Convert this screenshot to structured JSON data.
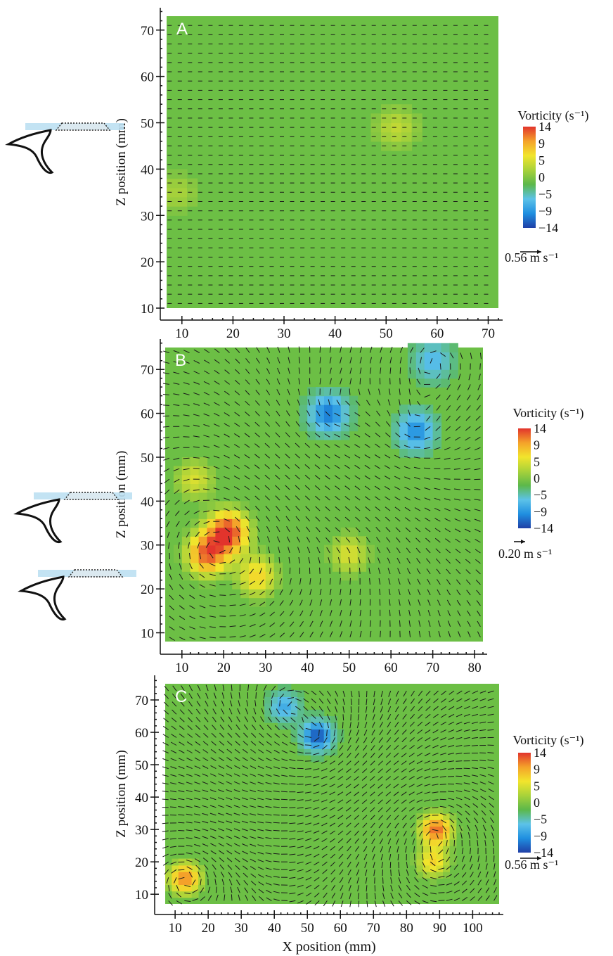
{
  "figure": {
    "x_axis_label": "X position (mm)",
    "colors": {
      "vorticity_scale": [
        "#1f3fa6",
        "#1f8fe0",
        "#5cc2e8",
        "#5cb84a",
        "#a8d23a",
        "#f2e52c",
        "#f4a22a",
        "#e2342c"
      ],
      "background_field": "#6cbf45",
      "arrow": "#1a1a1a"
    }
  },
  "chart_data": [
    {
      "type": "heatmap",
      "panel": "A",
      "ylabel": "Z position (mm)",
      "xlabel": "",
      "x_ticks": [
        10,
        20,
        30,
        40,
        50,
        60,
        70
      ],
      "y_ticks": [
        10,
        20,
        30,
        40,
        50,
        60,
        70
      ],
      "xlim": [
        7,
        72
      ],
      "ylim": [
        10,
        73
      ],
      "colorbar": {
        "title": "Vorticity (s⁻¹)",
        "ticks": [
          "14",
          "9",
          "5",
          "0",
          "−5",
          "−9",
          "−14"
        ],
        "range": [
          -14,
          14
        ]
      },
      "velocity_scale": "0.56 m s⁻¹",
      "flow_field": "uniform",
      "vortices": [
        {
          "x": 52,
          "z": 49,
          "vorticity": 4
        },
        {
          "x": 9,
          "z": 35,
          "vorticity": 3
        }
      ]
    },
    {
      "type": "heatmap",
      "panel": "B",
      "ylabel": "Z position (mm)",
      "xlabel": "",
      "x_ticks": [
        10,
        20,
        30,
        40,
        50,
        60,
        70,
        80
      ],
      "y_ticks": [
        10,
        20,
        30,
        40,
        50,
        60,
        70
      ],
      "xlim": [
        6,
        82
      ],
      "ylim": [
        8,
        75
      ],
      "colorbar": {
        "title": "Vorticity (s⁻¹)",
        "ticks": [
          "14",
          "9",
          "5",
          "0",
          "−5",
          "−9",
          "−14"
        ],
        "range": [
          -14,
          14
        ]
      },
      "velocity_scale": "0.20 m s⁻¹",
      "flow_field": "vortex",
      "vortices": [
        {
          "x": 21,
          "z": 33,
          "vorticity": 14
        },
        {
          "x": 16,
          "z": 28,
          "vorticity": 12
        },
        {
          "x": 28,
          "z": 23,
          "vorticity": 7
        },
        {
          "x": 13,
          "z": 45,
          "vorticity": 5
        },
        {
          "x": 50,
          "z": 28,
          "vorticity": 5
        },
        {
          "x": 45,
          "z": 60,
          "vorticity": -11
        },
        {
          "x": 66,
          "z": 56,
          "vorticity": -10
        },
        {
          "x": 70,
          "z": 72,
          "vorticity": -7
        }
      ]
    },
    {
      "type": "heatmap",
      "panel": "C",
      "ylabel": "Z position (mm)",
      "xlabel": "X position (mm)",
      "x_ticks": [
        10,
        20,
        30,
        40,
        50,
        60,
        70,
        80,
        90,
        100
      ],
      "y_ticks": [
        10,
        20,
        30,
        40,
        50,
        60,
        70
      ],
      "xlim": [
        7,
        108
      ],
      "ylim": [
        7,
        75
      ],
      "colorbar": {
        "title": "Vorticity (s⁻¹)",
        "ticks": [
          "14",
          "9",
          "5",
          "0",
          "−5",
          "−9",
          "−14"
        ],
        "range": [
          -14,
          14
        ]
      },
      "velocity_scale": "0.56 m s⁻¹",
      "flow_field": "vortex",
      "vortices": [
        {
          "x": 53,
          "z": 59,
          "vorticity": -13
        },
        {
          "x": 43,
          "z": 68,
          "vorticity": -8
        },
        {
          "x": 89,
          "z": 30,
          "vorticity": 12
        },
        {
          "x": 88,
          "z": 20,
          "vorticity": 7
        },
        {
          "x": 13,
          "z": 15,
          "vorticity": 11
        }
      ]
    }
  ]
}
